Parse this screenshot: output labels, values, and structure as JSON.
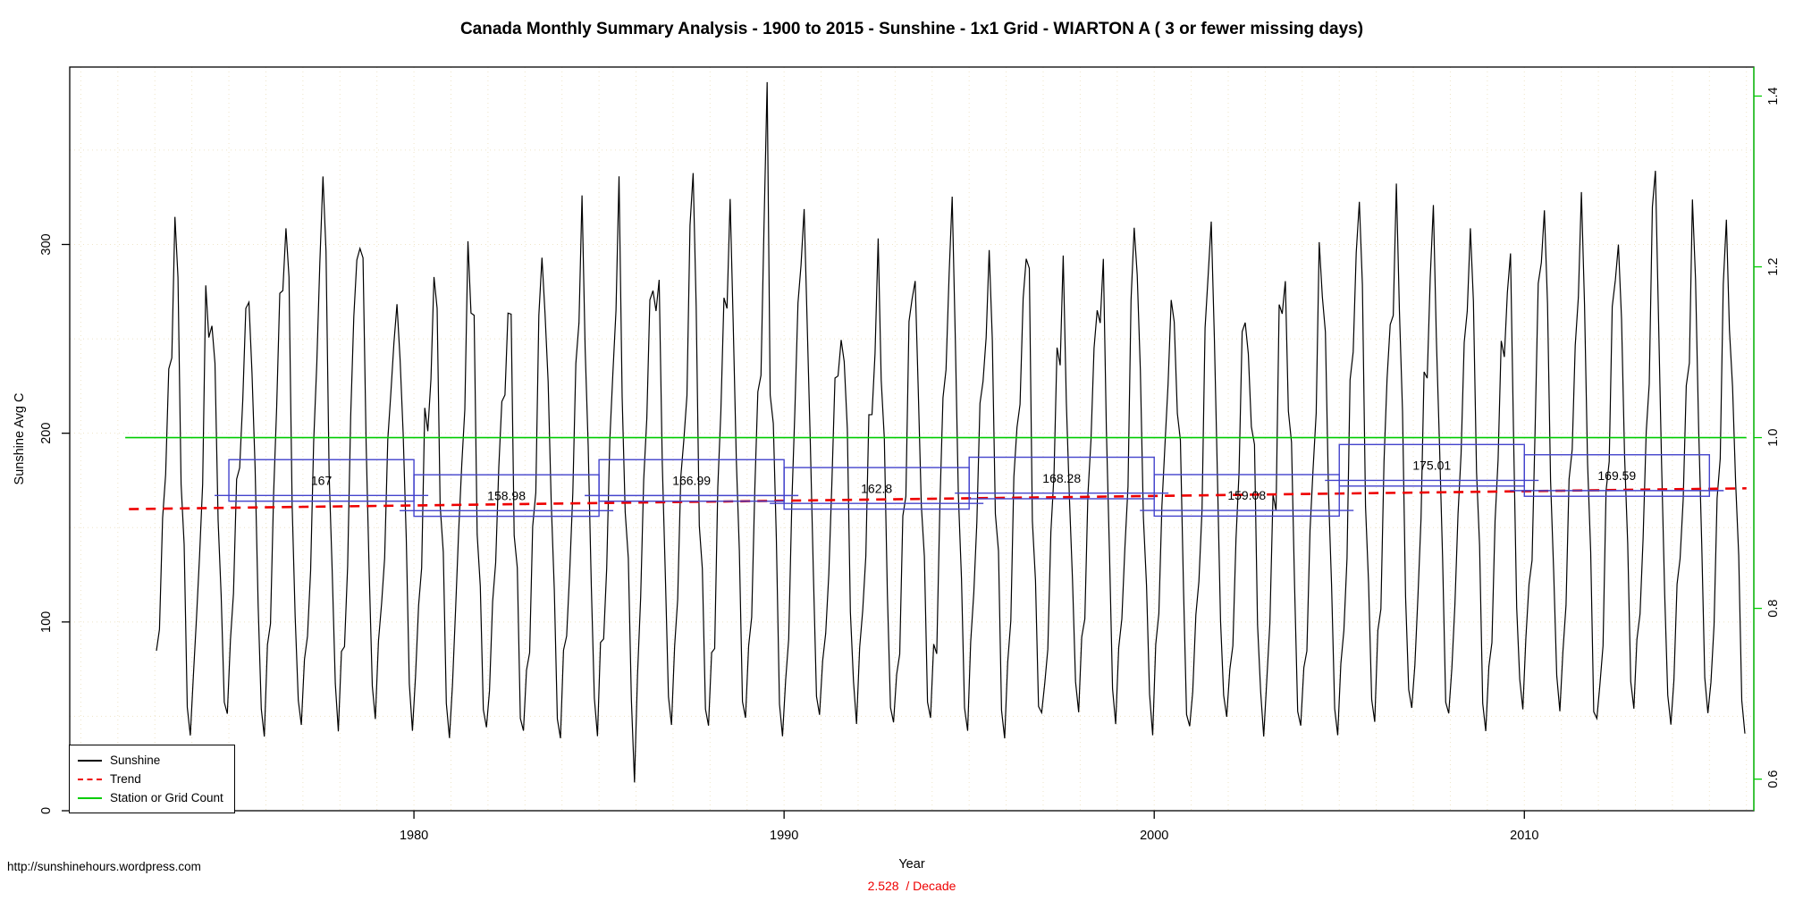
{
  "page": {
    "footer_url": "http://sunshinehours.wordpress.com",
    "trend_label": "2.528  / Decade"
  },
  "legend": {
    "items": [
      {
        "label": "Sunshine",
        "color": "#000000",
        "style": "solid"
      },
      {
        "label": "Trend",
        "color": "#ee0000",
        "style": "dashed"
      },
      {
        "label": "Station or Grid Count",
        "color": "#00cc00",
        "style": "solid"
      }
    ]
  },
  "chart_data": {
    "type": "line",
    "title": "Canada Monthly Summary Analysis - 1900 to 2015 - Sunshine - 1x1 Grid - WIARTON A ( 3 or fewer missing days)",
    "xlabel": "Year",
    "ylabel": "Sunshine Avg C",
    "x_domain": [
      1970.7,
      2016.2
    ],
    "x_ticks": [
      1980,
      1990,
      2000,
      2010
    ],
    "y_left_domain": [
      0,
      394
    ],
    "y_left_ticks": [
      0,
      100,
      200,
      300
    ],
    "y_right_domain": [
      0.563,
      1.434
    ],
    "y_right_ticks": [
      0.6,
      0.8,
      1.0,
      1.2,
      1.4
    ],
    "grid": true,
    "grid_color": "#eee4c8",
    "series_color": "#000000",
    "sunshine_series": {
      "start_year": 1973,
      "end_year": 2015,
      "seasonal_profile": [
        78,
        100,
        150,
        192,
        240,
        268,
        292,
        252,
        178,
        122,
        60,
        45
      ],
      "noise_amplitude": 0.17,
      "noise_seed": 20,
      "max_peak": {
        "year": 1989,
        "month": 7,
        "value": 386
      },
      "min_trough": {
        "year": 1985,
        "month": 12,
        "value": 15
      }
    },
    "pentad_means": [
      {
        "start_year": 1975,
        "end_year": 1980,
        "mean": 167,
        "label": "167"
      },
      {
        "start_year": 1980,
        "end_year": 1985,
        "mean": 158.98,
        "label": "158.98"
      },
      {
        "start_year": 1985,
        "end_year": 1990,
        "mean": 166.99,
        "label": "166.99"
      },
      {
        "start_year": 1990,
        "end_year": 1995,
        "mean": 162.8,
        "label": "162.8"
      },
      {
        "start_year": 1995,
        "end_year": 2000,
        "mean": 168.28,
        "label": "168.28"
      },
      {
        "start_year": 2000,
        "end_year": 2005,
        "mean": 159.08,
        "label": "159.08"
      },
      {
        "start_year": 2005,
        "end_year": 2010,
        "mean": 175.01,
        "label": "175.01"
      },
      {
        "start_year": 2010,
        "end_year": 2015,
        "mean": 169.59,
        "label": "169.59"
      }
    ],
    "pentad_box_color": "#4444cc",
    "pentad_label_color": "#ee0000",
    "trend": {
      "slope_per_decade": 2.528,
      "start_year": 1972.3,
      "start_value": 159.8,
      "end_year": 2016.0,
      "end_value": 170.8,
      "color": "#ee0000"
    },
    "station_count": {
      "value": 1.0,
      "start_year": 1972.2,
      "end_year": 2016.0,
      "color": "#00cc00"
    }
  }
}
